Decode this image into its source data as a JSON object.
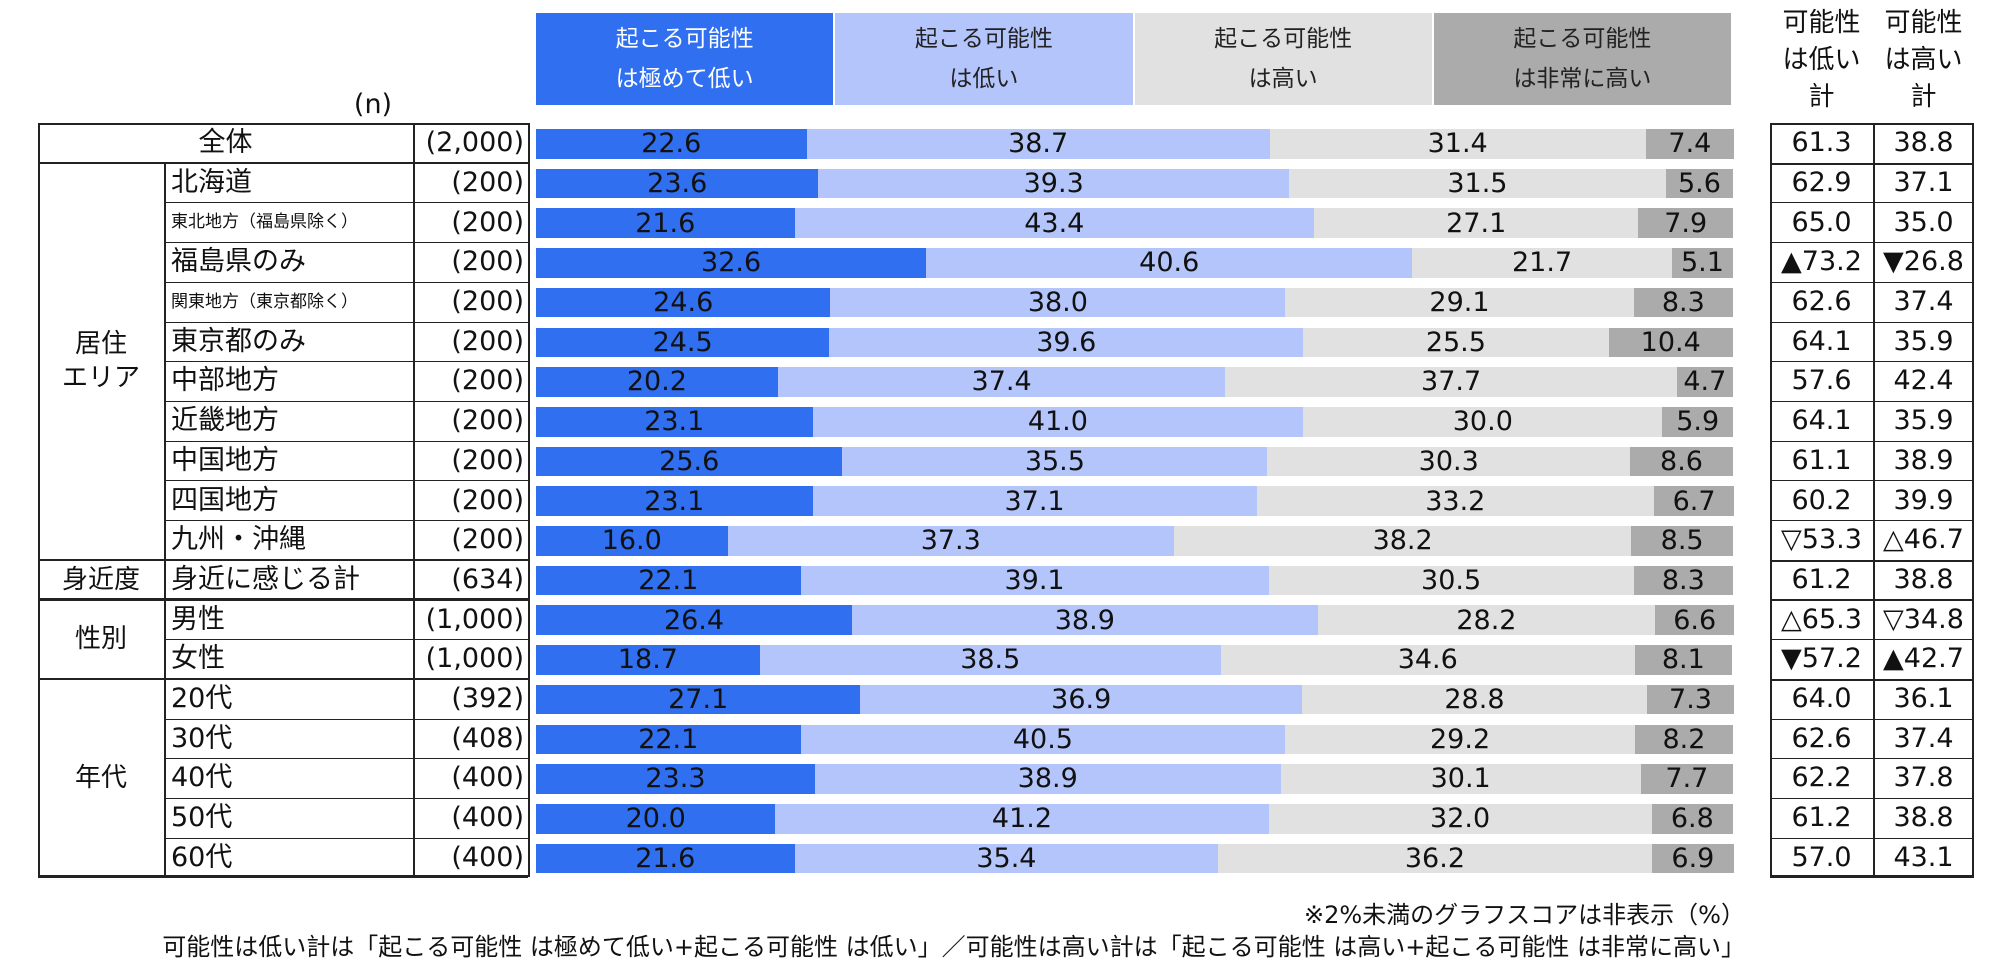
{
  "chart_data": {
    "type": "stacked_bar",
    "orientation": "horizontal",
    "n_header": "(n)",
    "group": [
      null,
      "居住\nエリア",
      "居住\nエリア",
      "居住\nエリア",
      "居住\nエリア",
      "居住\nエリア",
      "居住\nエリア",
      "居住\nエリア",
      "居住\nエリア",
      "居住\nエリア",
      "居住\nエリア",
      "身近度",
      "性別",
      "性別",
      "年代",
      "年代",
      "年代",
      "年代",
      "年代"
    ],
    "categories": [
      "全体",
      "北海道",
      "東北地方（福島県除く）",
      "福島県のみ",
      "関東地方（東京都除く）",
      "東京都のみ",
      "中部地方",
      "近畿地方",
      "中国地方",
      "四国地方",
      "九州・沖縄",
      "身近に感じる計",
      "男性",
      "女性",
      "20代",
      "30代",
      "40代",
      "50代",
      "60代"
    ],
    "n": [
      "(2,000)",
      "(200)",
      "(200)",
      "(200)",
      "(200)",
      "(200)",
      "(200)",
      "(200)",
      "(200)",
      "(200)",
      "(200)",
      "(634)",
      "(1,000)",
      "(1,000)",
      "(392)",
      "(408)",
      "(400)",
      "(400)",
      "(400)"
    ],
    "series": [
      {
        "name": "起こる可能性\nは極めて低い",
        "color": "#2f6ff0",
        "values": [
          22.6,
          23.6,
          21.6,
          32.6,
          24.6,
          24.5,
          20.2,
          23.1,
          25.6,
          23.1,
          16.0,
          22.1,
          26.4,
          18.7,
          27.1,
          22.1,
          23.3,
          20.0,
          21.6
        ],
        "value_labels": [
          "22.6",
          "23.6",
          "21.6",
          "32.6",
          "24.6",
          "24.5",
          "20.2",
          "23.1",
          "25.6",
          "23.1",
          "16.0",
          "22.1",
          "26.4",
          "18.7",
          "27.1",
          "22.1",
          "23.3",
          "20.0",
          "21.6"
        ]
      },
      {
        "name": "起こる可能性\nは低い",
        "color": "#b4c5fb",
        "values": [
          38.7,
          39.3,
          43.4,
          40.6,
          38.0,
          39.6,
          37.4,
          41.0,
          35.5,
          37.1,
          37.3,
          39.1,
          38.9,
          38.5,
          36.9,
          40.5,
          38.9,
          41.2,
          35.4
        ],
        "value_labels": [
          "38.7",
          "39.3",
          "43.4",
          "40.6",
          "38.0",
          "39.6",
          "37.4",
          "41.0",
          "35.5",
          "37.1",
          "37.3",
          "39.1",
          "38.9",
          "38.5",
          "36.9",
          "40.5",
          "38.9",
          "41.2",
          "35.4"
        ]
      },
      {
        "name": "起こる可能性\nは高い",
        "color": "#e1e1e1",
        "values": [
          31.4,
          31.5,
          27.1,
          21.7,
          29.1,
          25.5,
          37.7,
          30.0,
          30.3,
          33.2,
          38.2,
          30.5,
          28.2,
          34.6,
          28.8,
          29.2,
          30.1,
          32.0,
          36.2
        ],
        "value_labels": [
          "31.4",
          "31.5",
          "27.1",
          "21.7",
          "29.1",
          "25.5",
          "37.7",
          "30.0",
          "30.3",
          "33.2",
          "38.2",
          "30.5",
          "28.2",
          "34.6",
          "28.8",
          "29.2",
          "30.1",
          "32.0",
          "36.2"
        ]
      },
      {
        "name": "起こる可能性\nは非常に高い",
        "color": "#ababab",
        "values": [
          7.4,
          5.6,
          7.9,
          5.1,
          8.3,
          10.4,
          4.7,
          5.9,
          8.6,
          6.7,
          8.5,
          8.3,
          6.6,
          8.1,
          7.3,
          8.2,
          7.7,
          6.8,
          6.9
        ],
        "value_labels": [
          "7.4",
          "5.6",
          "7.9",
          "5.1",
          "8.3",
          "10.4",
          "4.7",
          "5.9",
          "8.6",
          "6.7",
          "8.5",
          "8.3",
          "6.6",
          "8.1",
          "7.3",
          "8.2",
          "7.7",
          "6.8",
          "6.9"
        ]
      }
    ],
    "totals": [
      {
        "name": "可能性\nは低い\n計",
        "values": [
          61.3,
          62.9,
          65.0,
          73.2,
          62.6,
          64.1,
          57.6,
          64.1,
          61.1,
          60.2,
          53.3,
          61.2,
          65.3,
          57.2,
          64.0,
          62.6,
          62.2,
          61.2,
          57.0
        ],
        "value_labels": [
          "61.3",
          "62.9",
          "65.0",
          "▲73.2",
          "62.6",
          "64.1",
          "57.6",
          "64.1",
          "61.1",
          "60.2",
          "▽53.3",
          "61.2",
          "△65.3",
          "▼57.2",
          "64.0",
          "62.6",
          "62.2",
          "61.2",
          "57.0"
        ]
      },
      {
        "name": "可能性\nは高い\n計",
        "values": [
          38.8,
          37.1,
          35.0,
          26.8,
          37.4,
          35.9,
          42.4,
          35.9,
          38.9,
          39.9,
          46.7,
          38.8,
          34.8,
          42.7,
          36.1,
          37.4,
          37.8,
          38.8,
          43.1
        ],
        "value_labels": [
          "38.8",
          "37.1",
          "35.0",
          "▼26.8",
          "37.4",
          "35.9",
          "42.4",
          "35.9",
          "38.9",
          "39.9",
          "△46.7",
          "38.8",
          "▽34.8",
          "▲42.7",
          "36.1",
          "37.4",
          "37.8",
          "38.8",
          "43.1"
        ]
      }
    ],
    "xlim": [
      0,
      100
    ],
    "notes": [
      "※2%未満のグラフスコアは非表示（%）",
      "可能性は低い計は「起こる可能性 は極めて低い+起こる可能性 は低い」／可能性は高い計は「起こる可能性 は高い+起こる可能性 は非常に高い」"
    ]
  }
}
